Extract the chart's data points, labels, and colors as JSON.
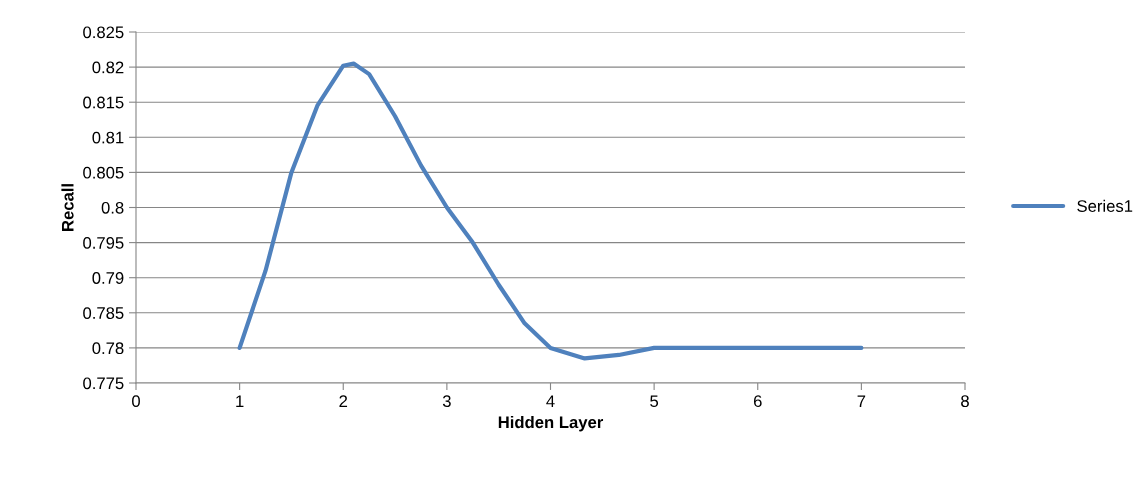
{
  "chart_data": {
    "type": "line",
    "xlabel": "Hidden Layer",
    "ylabel": "Recall",
    "series": [
      {
        "name": "Series1",
        "color": "#4f81bd",
        "x": [
          1,
          1.25,
          1.5,
          1.75,
          2,
          2.1,
          2.25,
          2.5,
          2.75,
          3,
          3.25,
          3.5,
          3.75,
          4,
          4.33,
          4.66,
          5,
          6,
          7
        ],
        "values": [
          0.78,
          0.791,
          0.805,
          0.8145,
          0.8202,
          0.8205,
          0.819,
          0.813,
          0.806,
          0.8,
          0.795,
          0.789,
          0.7835,
          0.78,
          0.7785,
          0.779,
          0.78,
          0.78,
          0.78
        ]
      }
    ],
    "xlim": [
      0,
      8
    ],
    "xticks": [
      0,
      1,
      2,
      3,
      4,
      5,
      6,
      7,
      8
    ],
    "ylim": [
      0.775,
      0.825
    ],
    "yticks": [
      0.775,
      0.78,
      0.785,
      0.79,
      0.795,
      0.8,
      0.805,
      0.81,
      0.815,
      0.82,
      0.825
    ],
    "grid": "y",
    "legend": "right",
    "marker": "none",
    "line_style": "solid"
  }
}
